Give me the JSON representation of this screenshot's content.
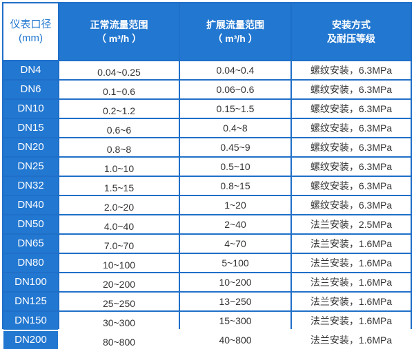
{
  "header": {
    "col0": [
      "仪表口径",
      "(mm)"
    ],
    "col1": [
      "正常流量范围",
      "（ m³/h ）"
    ],
    "col2": [
      "扩展流量范围",
      "（ m³/h ）"
    ],
    "col3": [
      "安装方式",
      "及耐压等级"
    ]
  },
  "rows": [
    [
      "DN4",
      "0.04~0.25",
      "0.04~0.4",
      "螺纹安装，6.3MPa"
    ],
    [
      "DN6",
      "0.1~0.6",
      "0.06~0.6",
      "螺纹安装，6.3MPa"
    ],
    [
      "DN10",
      "0.2~1.2",
      "0.15~1.5",
      "螺纹安装，6.3MPa"
    ],
    [
      "DN15",
      "0.6~6",
      "0.4~8",
      "螺纹安装，6.3MPa"
    ],
    [
      "DN20",
      "0.8~8",
      "0.45~9",
      "螺纹安装，6.3MPa"
    ],
    [
      "DN25",
      "1.0~10",
      "0.5~10",
      "螺纹安装，6.3MPa"
    ],
    [
      "DN32",
      "1.5~15",
      "0.8~15",
      "螺纹安装，6.3MPa"
    ],
    [
      "DN40",
      "2.0~20",
      "1~20",
      "螺纹安装，6.3MPa"
    ],
    [
      "DN50",
      "4.0~40",
      "2~40",
      "法兰安装，2.5MPa"
    ],
    [
      "DN65",
      "7.0~70",
      "4~70",
      "法兰安装，1.6MPa"
    ],
    [
      "DN80",
      "10~100",
      "5~100",
      "法兰安装，1.6MPa"
    ],
    [
      "DN100",
      "20~200",
      "10~200",
      "法兰安装，1.6MPa"
    ],
    [
      "DN125",
      "25~250",
      "13~250",
      "法兰安装，1.6MPa"
    ],
    [
      "DN150",
      "30~300",
      "15~300",
      "法兰安装，1.6MPa"
    ],
    [
      "DN200",
      "80~800",
      "40~800",
      "法兰安装，1.6MPa"
    ]
  ],
  "colors": {
    "header_blue": "#2277d0",
    "border_blue": "#1f6fc8"
  }
}
